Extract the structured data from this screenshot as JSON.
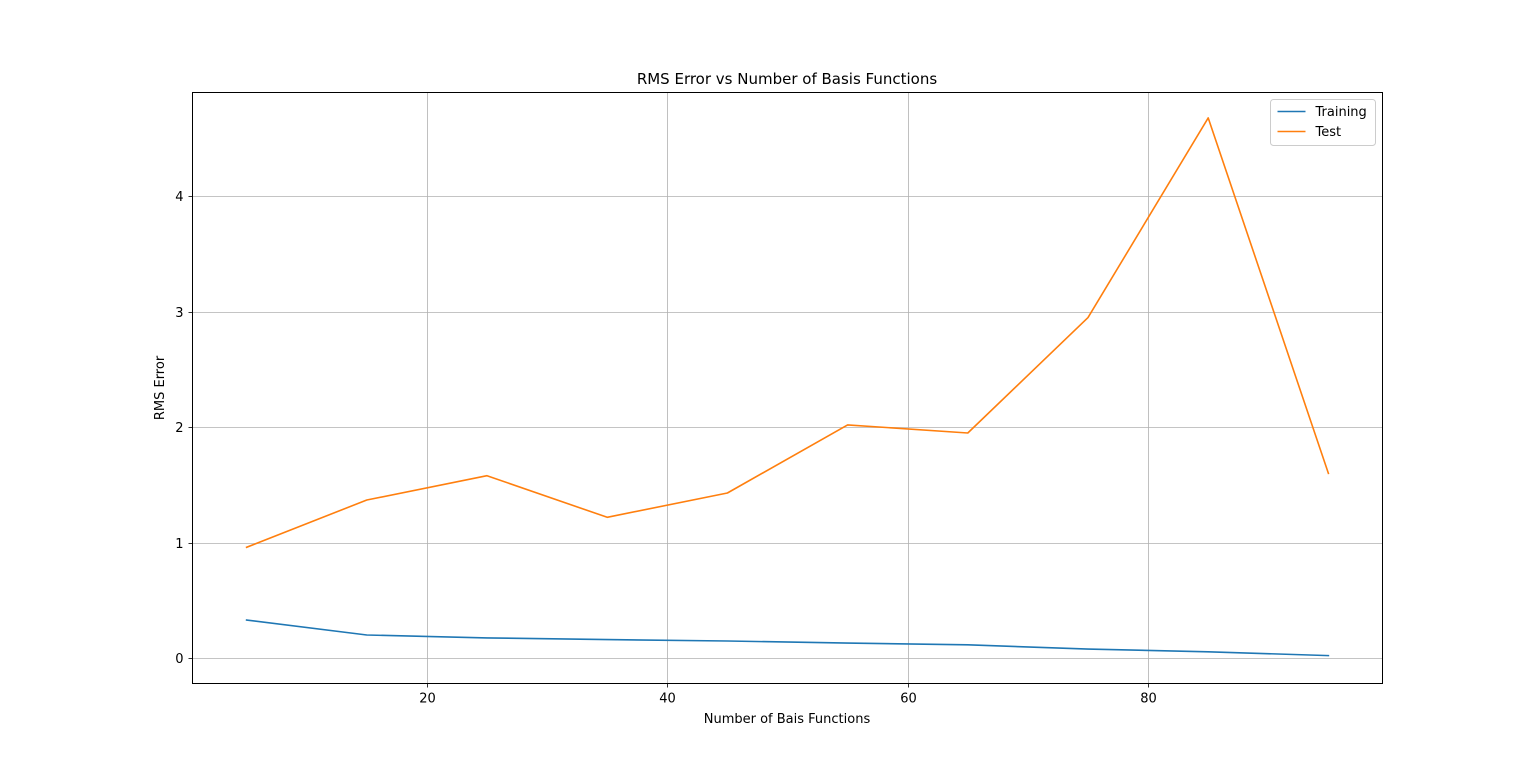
{
  "chart_data": {
    "type": "line",
    "title": "RMS Error vs Number of Basis Functions",
    "xlabel": "Number of Bais Functions",
    "ylabel": "RMS Error",
    "x": [
      5,
      15,
      25,
      35,
      45,
      55,
      65,
      75,
      85,
      95
    ],
    "series": [
      {
        "name": "Training",
        "color": "#1f77b4",
        "values": [
          0.33,
          0.2,
          0.175,
          0.16,
          0.148,
          0.13,
          0.115,
          0.078,
          0.055,
          0.022
        ]
      },
      {
        "name": "Test",
        "color": "#ff7f0e",
        "values": [
          0.96,
          1.37,
          1.58,
          1.22,
          1.43,
          2.02,
          1.95,
          2.95,
          4.68,
          1.6
        ]
      }
    ],
    "xlim": [
      0.5,
      99.5
    ],
    "ylim": [
      -0.22,
      4.9
    ],
    "xticks": [
      20,
      40,
      60,
      80
    ],
    "yticks": [
      0,
      1,
      2,
      3,
      4
    ],
    "grid": true,
    "legend": "top-right"
  }
}
